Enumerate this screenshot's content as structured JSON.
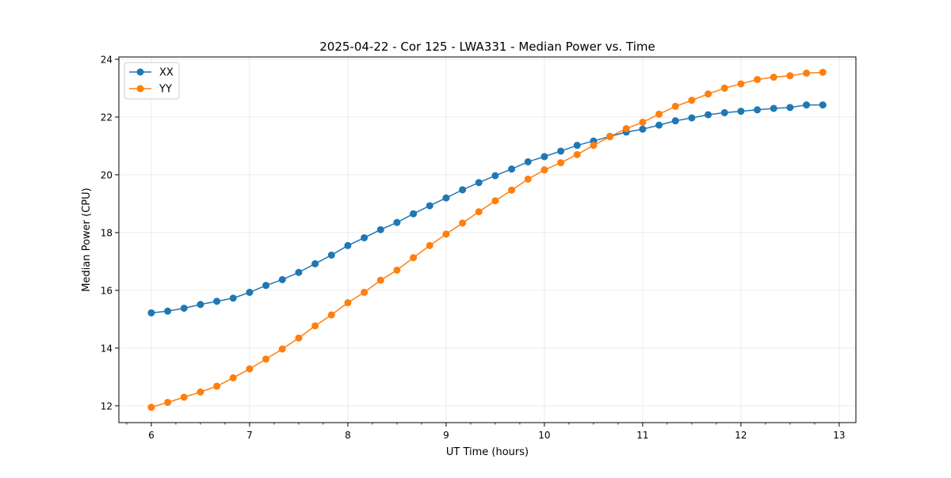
{
  "chart_data": {
    "type": "line",
    "title": "2025-04-22 - Cor 125 - LWA331 - Median Power vs. Time",
    "xlabel": "UT Time (hours)",
    "ylabel": "Median Power (CPU)",
    "xlim": [
      5.67,
      13.17
    ],
    "ylim": [
      11.42,
      24.08
    ],
    "xticks": [
      6,
      7,
      8,
      9,
      10,
      11,
      12,
      13
    ],
    "xtick_labels": [
      "6",
      "7",
      "8",
      "9",
      "10",
      "11",
      "12",
      "13"
    ],
    "yticks": [
      12,
      14,
      16,
      18,
      20,
      22,
      24
    ],
    "ytick_labels": [
      "12",
      "14",
      "16",
      "18",
      "20",
      "22",
      "24"
    ],
    "grid": true,
    "legend_position": "top-left",
    "x": [
      6.0,
      6.1667,
      6.3333,
      6.5,
      6.6667,
      6.8333,
      7.0,
      7.1667,
      7.3333,
      7.5,
      7.6667,
      7.8333,
      8.0,
      8.1667,
      8.3333,
      8.5,
      8.6667,
      8.8333,
      9.0,
      9.1667,
      9.3333,
      9.5,
      9.6667,
      9.8333,
      10.0,
      10.1667,
      10.3333,
      10.5,
      10.6667,
      10.8333,
      11.0,
      11.1667,
      11.3333,
      11.5,
      11.6667,
      11.8333,
      12.0,
      12.1667,
      12.3333,
      12.5,
      12.6667,
      12.8333
    ],
    "series": [
      {
        "name": "XX",
        "color": "#1f77b4",
        "values": [
          15.22,
          15.28,
          15.38,
          15.51,
          15.62,
          15.73,
          15.93,
          16.17,
          16.37,
          16.62,
          16.92,
          17.22,
          17.55,
          17.82,
          18.1,
          18.35,
          18.65,
          18.93,
          19.2,
          19.48,
          19.73,
          19.97,
          20.2,
          20.45,
          20.63,
          20.82,
          21.02,
          21.17,
          21.33,
          21.48,
          21.58,
          21.72,
          21.87,
          21.97,
          22.08,
          22.15,
          22.2,
          22.25,
          22.3,
          22.33,
          22.42,
          22.42
        ]
      },
      {
        "name": "YY",
        "color": "#ff7f0e",
        "values": [
          11.95,
          12.12,
          12.3,
          12.48,
          12.68,
          12.97,
          13.28,
          13.62,
          13.97,
          14.35,
          14.77,
          15.15,
          15.57,
          15.93,
          16.35,
          16.7,
          17.13,
          17.55,
          17.95,
          18.33,
          18.72,
          19.1,
          19.47,
          19.85,
          20.17,
          20.42,
          20.7,
          21.02,
          21.32,
          21.6,
          21.82,
          22.1,
          22.37,
          22.58,
          22.8,
          23.0,
          23.15,
          23.3,
          23.38,
          23.43,
          23.52,
          23.55
        ]
      }
    ]
  }
}
